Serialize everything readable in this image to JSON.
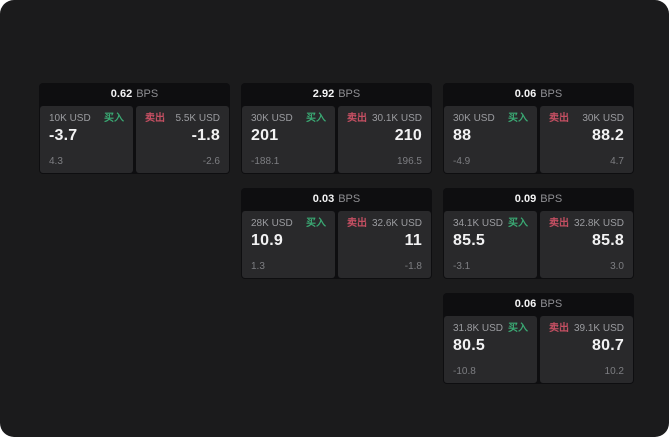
{
  "labels": {
    "bps": "BPS",
    "buy": "买入",
    "sell": "卖出"
  },
  "colors": {
    "background": "#1b1b1c",
    "card_background": "#0e0e10",
    "panel_background": "#29292b",
    "buy_green": "#3aa873",
    "sell_red": "#c44f62",
    "text_primary": "#f2f2f3",
    "text_muted": "#9b9ca0",
    "text_dim": "#7d7e82"
  },
  "cards": [
    {
      "bps": "0.62",
      "buy": {
        "amount": "10K USD",
        "value": "-3.7",
        "sub": "4.3"
      },
      "sell": {
        "amount": "5.5K USD",
        "value": "-1.8",
        "sub": "-2.6"
      }
    },
    {
      "bps": "2.92",
      "buy": {
        "amount": "30K USD",
        "value": "201",
        "sub": "-188.1"
      },
      "sell": {
        "amount": "30.1K USD",
        "value": "210",
        "sub": "196.5"
      }
    },
    {
      "bps": "0.06",
      "buy": {
        "amount": "30K USD",
        "value": "88",
        "sub": "-4.9"
      },
      "sell": {
        "amount": "30K USD",
        "value": "88.2",
        "sub": "4.7"
      }
    },
    {
      "bps": "0.03",
      "buy": {
        "amount": "28K USD",
        "value": "10.9",
        "sub": "1.3"
      },
      "sell": {
        "amount": "32.6K USD",
        "value": "11",
        "sub": "-1.8"
      }
    },
    {
      "bps": "0.09",
      "buy": {
        "amount": "34.1K USD",
        "value": "85.5",
        "sub": "-3.1"
      },
      "sell": {
        "amount": "32.8K USD",
        "value": "85.8",
        "sub": "3.0"
      }
    },
    {
      "bps": "0.06",
      "buy": {
        "amount": "31.8K USD",
        "value": "80.5",
        "sub": "-10.8"
      },
      "sell": {
        "amount": "39.1K USD",
        "value": "80.7",
        "sub": "10.2"
      }
    }
  ]
}
